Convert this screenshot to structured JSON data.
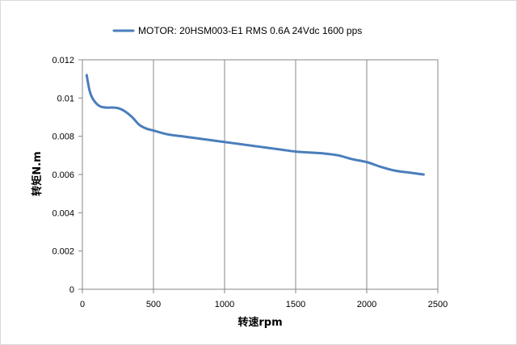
{
  "chart_data": {
    "type": "line",
    "title": "",
    "xlabel": "转速rpm",
    "ylabel": "转矩N.m",
    "xlim": [
      0,
      2500
    ],
    "ylim": [
      0,
      0.012
    ],
    "x_ticks": [
      "0",
      "500",
      "1000",
      "1500",
      "2000",
      "2500"
    ],
    "y_ticks": [
      "0",
      "0.002",
      "0.004",
      "0.006",
      "0.008",
      "0.01",
      "0.012"
    ],
    "grid": "vertical",
    "legend_position": "top",
    "series": [
      {
        "name": "MOTOR: 20HSM003-E1 RMS 0.6A 24Vdc  1600 pps",
        "color": "#4a7ebb",
        "x": [
          30,
          50,
          70,
          100,
          130,
          170,
          220,
          260,
          300,
          350,
          400,
          450,
          500,
          600,
          700,
          800,
          900,
          1000,
          1100,
          1200,
          1300,
          1400,
          1500,
          1600,
          1700,
          1800,
          1900,
          2000,
          2100,
          2200,
          2300,
          2400
        ],
        "y": [
          0.0112,
          0.0104,
          0.01,
          0.0097,
          0.00955,
          0.0095,
          0.0095,
          0.00945,
          0.0093,
          0.009,
          0.0086,
          0.0084,
          0.0083,
          0.0081,
          0.008,
          0.0079,
          0.0078,
          0.0077,
          0.0076,
          0.0075,
          0.0074,
          0.0073,
          0.0072,
          0.00715,
          0.0071,
          0.007,
          0.0068,
          0.00665,
          0.0064,
          0.0062,
          0.0061,
          0.006
        ]
      }
    ]
  }
}
